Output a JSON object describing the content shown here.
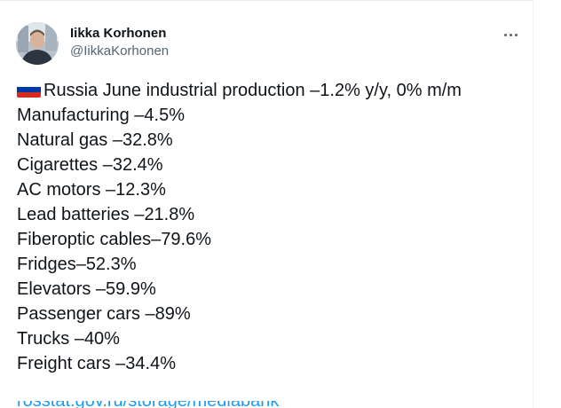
{
  "tweet": {
    "author_name": "Iikka Korhonen",
    "author_handle": "@IikkaKorhonen",
    "more_icon": "more-horizontal-icon",
    "flag_icon": "russia-flag-icon",
    "headline": "Russia June industrial production –1.2% y/y, 0% m/m",
    "lines": [
      "Manufacturing –4.5%",
      "Natural gas –32.8%",
      "Cigarettes –32.4%",
      "AC motors –12.3%",
      "Lead batteries –21.8%",
      "Fiberoptic cables–79.6%",
      "Fridges–52.3%",
      "Elevators –59.9%",
      "Passenger cars –89%",
      "Trucks –40%",
      "Freight cars –34.4%"
    ],
    "link_partial": "rosstat.gov.ru/storage/mediabank"
  },
  "colors": {
    "text": "#0f1419",
    "secondary": "#536471",
    "link": "#1d9bf0",
    "flag_white": "#ffffff",
    "flag_blue": "#0039a6",
    "flag_red": "#d52b1e"
  }
}
